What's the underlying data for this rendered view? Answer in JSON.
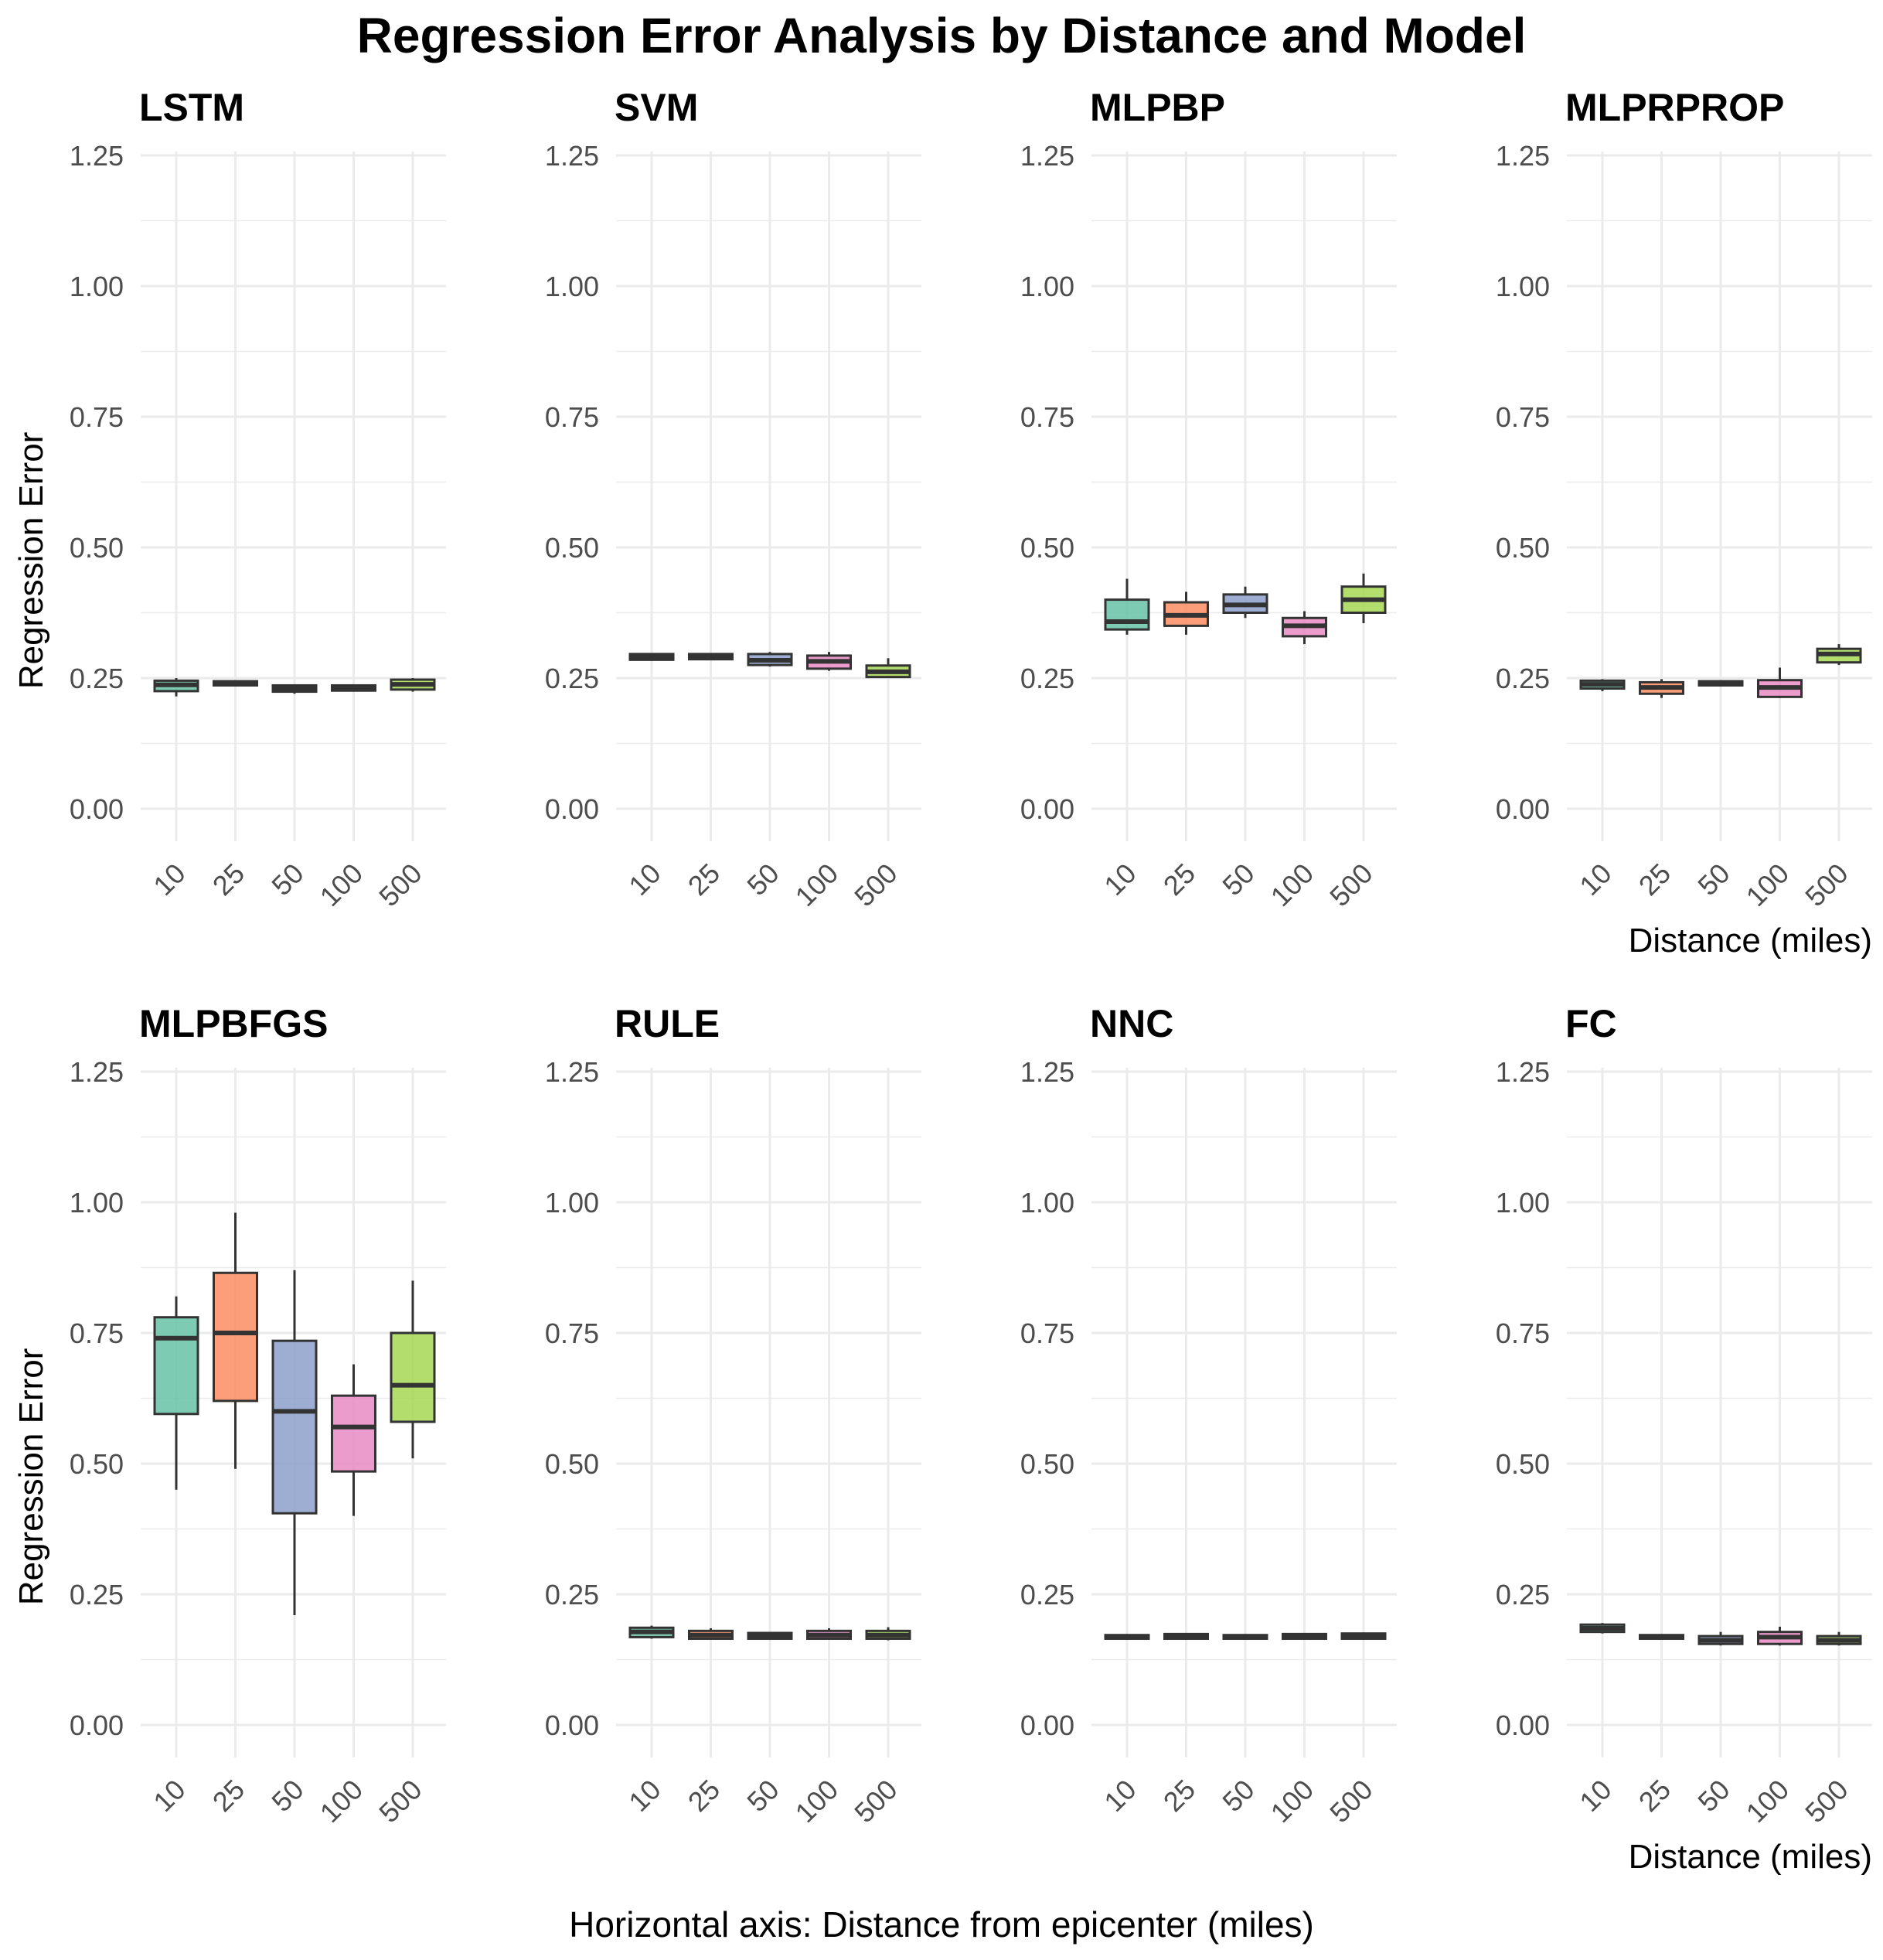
{
  "title": "Regression Error Analysis by Distance and Model",
  "caption": "Horizontal axis: Distance from epicenter (miles)",
  "colors": {
    "10": "#66c2a5",
    "25": "#fc8d62",
    "50": "#8da0cb",
    "100": "#e78ac3",
    "500": "#a6d854",
    "grid": "#ebebeb",
    "box_line": "#333333"
  },
  "chart_data": {
    "type": "boxplot",
    "x_categories": [
      "10",
      "25",
      "50",
      "100",
      "500"
    ],
    "xlabel": "Distance (miles)",
    "ylabel": "Regression Error",
    "ylim": [
      0,
      1.25
    ],
    "y_ticks": [
      "0.00",
      "0.25",
      "0.50",
      "0.75",
      "1.00",
      "1.25"
    ],
    "y_tick_values": [
      0,
      0.25,
      0.5,
      0.75,
      1.0,
      1.25
    ],
    "grid": true,
    "legend": "none",
    "panels": [
      {
        "name": "LSTM",
        "boxes": [
          {
            "x": "10",
            "min": 0.215,
            "q1": 0.225,
            "median": 0.237,
            "q3": 0.245,
            "max": 0.25
          },
          {
            "x": "25",
            "min": 0.234,
            "q1": 0.236,
            "median": 0.24,
            "q3": 0.244,
            "max": 0.246
          },
          {
            "x": "50",
            "min": 0.22,
            "q1": 0.224,
            "median": 0.23,
            "q3": 0.236,
            "max": 0.238
          },
          {
            "x": "100",
            "min": 0.224,
            "q1": 0.226,
            "median": 0.231,
            "q3": 0.236,
            "max": 0.238
          },
          {
            "x": "500",
            "min": 0.224,
            "q1": 0.228,
            "median": 0.238,
            "q3": 0.247,
            "max": 0.25
          }
        ]
      },
      {
        "name": "SVM",
        "boxes": [
          {
            "x": "10",
            "min": 0.283,
            "q1": 0.285,
            "median": 0.29,
            "q3": 0.296,
            "max": 0.298
          },
          {
            "x": "25",
            "min": 0.284,
            "q1": 0.286,
            "median": 0.29,
            "q3": 0.296,
            "max": 0.298
          },
          {
            "x": "50",
            "min": 0.272,
            "q1": 0.275,
            "median": 0.284,
            "q3": 0.296,
            "max": 0.3
          },
          {
            "x": "100",
            "min": 0.264,
            "q1": 0.268,
            "median": 0.282,
            "q3": 0.293,
            "max": 0.3
          },
          {
            "x": "500",
            "min": 0.25,
            "q1": 0.252,
            "median": 0.262,
            "q3": 0.274,
            "max": 0.288
          }
        ]
      },
      {
        "name": "MLPBP",
        "boxes": [
          {
            "x": "10",
            "min": 0.333,
            "q1": 0.343,
            "median": 0.358,
            "q3": 0.4,
            "max": 0.44
          },
          {
            "x": "25",
            "min": 0.333,
            "q1": 0.35,
            "median": 0.37,
            "q3": 0.395,
            "max": 0.415
          },
          {
            "x": "50",
            "min": 0.365,
            "q1": 0.375,
            "median": 0.39,
            "q3": 0.41,
            "max": 0.425
          },
          {
            "x": "100",
            "min": 0.315,
            "q1": 0.33,
            "median": 0.35,
            "q3": 0.365,
            "max": 0.378
          },
          {
            "x": "500",
            "min": 0.355,
            "q1": 0.375,
            "median": 0.4,
            "q3": 0.425,
            "max": 0.45
          }
        ]
      },
      {
        "name": "MLPRPROP",
        "boxes": [
          {
            "x": "10",
            "min": 0.225,
            "q1": 0.23,
            "median": 0.238,
            "q3": 0.245,
            "max": 0.248
          },
          {
            "x": "25",
            "min": 0.212,
            "q1": 0.22,
            "median": 0.232,
            "q3": 0.242,
            "max": 0.248
          },
          {
            "x": "50",
            "min": 0.234,
            "q1": 0.236,
            "median": 0.24,
            "q3": 0.244,
            "max": 0.246
          },
          {
            "x": "100",
            "min": 0.212,
            "q1": 0.214,
            "median": 0.232,
            "q3": 0.246,
            "max": 0.27
          },
          {
            "x": "500",
            "min": 0.275,
            "q1": 0.28,
            "median": 0.296,
            "q3": 0.306,
            "max": 0.315
          }
        ]
      },
      {
        "name": "MLPBFGS",
        "boxes": [
          {
            "x": "10",
            "min": 0.45,
            "q1": 0.595,
            "median": 0.74,
            "q3": 0.78,
            "max": 0.82
          },
          {
            "x": "25",
            "min": 0.49,
            "q1": 0.62,
            "median": 0.75,
            "q3": 0.865,
            "max": 0.98
          },
          {
            "x": "50",
            "min": 0.21,
            "q1": 0.405,
            "median": 0.6,
            "q3": 0.735,
            "max": 0.87
          },
          {
            "x": "100",
            "min": 0.4,
            "q1": 0.485,
            "median": 0.57,
            "q3": 0.63,
            "max": 0.69
          },
          {
            "x": "500",
            "min": 0.51,
            "q1": 0.58,
            "median": 0.65,
            "q3": 0.75,
            "max": 0.85
          }
        ]
      },
      {
        "name": "RULE",
        "boxes": [
          {
            "x": "10",
            "min": 0.165,
            "q1": 0.168,
            "median": 0.178,
            "q3": 0.186,
            "max": 0.19
          },
          {
            "x": "25",
            "min": 0.163,
            "q1": 0.165,
            "median": 0.172,
            "q3": 0.18,
            "max": 0.185
          },
          {
            "x": "50",
            "min": 0.164,
            "q1": 0.165,
            "median": 0.17,
            "q3": 0.176,
            "max": 0.178
          },
          {
            "x": "100",
            "min": 0.163,
            "q1": 0.165,
            "median": 0.172,
            "q3": 0.18,
            "max": 0.185
          },
          {
            "x": "500",
            "min": 0.162,
            "q1": 0.165,
            "median": 0.172,
            "q3": 0.18,
            "max": 0.187
          }
        ]
      },
      {
        "name": "NNC",
        "boxes": [
          {
            "x": "10",
            "min": 0.163,
            "q1": 0.165,
            "median": 0.168,
            "q3": 0.172,
            "max": 0.174
          },
          {
            "x": "25",
            "min": 0.163,
            "q1": 0.165,
            "median": 0.169,
            "q3": 0.174,
            "max": 0.176
          },
          {
            "x": "50",
            "min": 0.163,
            "q1": 0.165,
            "median": 0.168,
            "q3": 0.172,
            "max": 0.174
          },
          {
            "x": "100",
            "min": 0.163,
            "q1": 0.165,
            "median": 0.169,
            "q3": 0.174,
            "max": 0.176
          },
          {
            "x": "500",
            "min": 0.163,
            "q1": 0.165,
            "median": 0.169,
            "q3": 0.175,
            "max": 0.177
          }
        ]
      },
      {
        "name": "FC",
        "boxes": [
          {
            "x": "10",
            "min": 0.175,
            "q1": 0.178,
            "median": 0.185,
            "q3": 0.192,
            "max": 0.195
          },
          {
            "x": "25",
            "min": 0.163,
            "q1": 0.165,
            "median": 0.168,
            "q3": 0.172,
            "max": 0.174
          },
          {
            "x": "50",
            "min": 0.152,
            "q1": 0.155,
            "median": 0.162,
            "q3": 0.17,
            "max": 0.178
          },
          {
            "x": "100",
            "min": 0.152,
            "q1": 0.155,
            "median": 0.168,
            "q3": 0.178,
            "max": 0.188
          },
          {
            "x": "500",
            "min": 0.152,
            "q1": 0.155,
            "median": 0.162,
            "q3": 0.17,
            "max": 0.178
          }
        ]
      }
    ]
  }
}
